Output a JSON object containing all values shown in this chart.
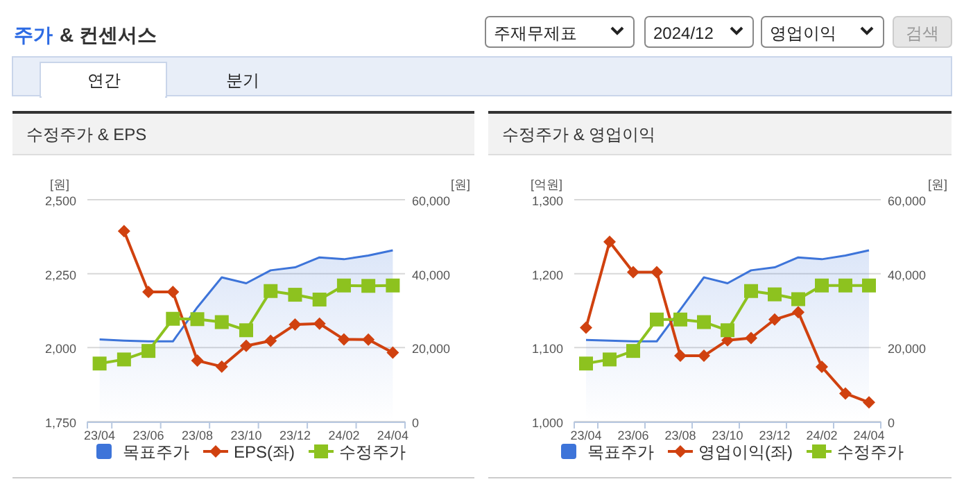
{
  "chart_data": [
    {
      "type": "line",
      "title": "수정주가 & EPS",
      "ylabel": "[원]",
      "y2label": "[원]",
      "annotations": [
        "주가",
        "& 컨센서스",
        "주재무제표",
        "2024/12",
        "영업이익",
        "검색",
        "연간",
        "분기"
      ],
      "categories": [
        "23/04",
        null,
        "23/06",
        null,
        "23/08",
        null,
        "23/10",
        null,
        "23/12",
        null,
        "24/02",
        null,
        "24/04"
      ],
      "series": [
        {
          "name": "목표주가",
          "type": "area",
          "axis": "y2",
          "color": "#3d74d9",
          "values": [
            22200,
            21900,
            21700,
            21700,
            30900,
            39000,
            37400,
            40900,
            41700,
            44400,
            43900,
            44900,
            46300
          ]
        },
        {
          "name": "EPS(좌)",
          "type": "line",
          "marker": "diamond",
          "color": "#d0410f",
          "values": [
            null,
            2394,
            2188,
            2188,
            1956,
            1936,
            2006,
            2023,
            2078,
            2081,
            2028,
            2027,
            1983
          ]
        },
        {
          "name": "수정주가",
          "type": "line",
          "marker": "square",
          "axis": "y2",
          "color": "#8dc21f",
          "values": [
            15700,
            16800,
            19100,
            27800,
            27700,
            26900,
            24700,
            35300,
            34300,
            33000,
            36800,
            36700,
            36800
          ]
        }
      ],
      "ylim": [
        1750,
        2500
      ],
      "yticks": [
        {
          "value": 1750,
          "label": "1,750"
        },
        {
          "value": 2000,
          "label": "2,000"
        },
        {
          "value": 2250,
          "label": "2,250"
        },
        {
          "value": 2500,
          "label": "2,500"
        }
      ],
      "y2lim": [
        0,
        60000
      ],
      "y2ticks": [
        0,
        {
          "value": 20000,
          "label": "20,000"
        },
        {
          "value": 40000,
          "label": "40,000"
        },
        {
          "value": 60000,
          "label": "60,000"
        }
      ],
      "grid": "y",
      "legend": "bottom"
    },
    {
      "type": "line",
      "title": "수정주가 & 영업이익",
      "ylabel": "[억원]",
      "y2label": "[원]",
      "categories": [
        "23/04",
        null,
        "23/06",
        null,
        "23/08",
        null,
        "23/10",
        null,
        "23/12",
        null,
        "24/02",
        null,
        "24/04"
      ],
      "series": [
        {
          "name": "목표주가",
          "type": "area",
          "axis": "y2",
          "color": "#3d74d9",
          "values": [
            22100,
            21900,
            21700,
            21700,
            30300,
            39000,
            37400,
            40900,
            41700,
            44400,
            43900,
            44900,
            46300
          ]
        },
        {
          "name": "영업이익(좌)",
          "type": "line",
          "marker": "diamond",
          "color": "#d0410f",
          "values": [
            1127,
            1243,
            1202,
            1202,
            1089,
            1089,
            1110,
            1113,
            1138,
            1148,
            1074,
            1038,
            1026
          ]
        },
        {
          "name": "수정주가",
          "type": "line",
          "marker": "square",
          "axis": "y2",
          "color": "#8dc21f",
          "values": [
            15700,
            16800,
            19100,
            27600,
            27600,
            26900,
            24700,
            35300,
            34400,
            33100,
            36800,
            36800,
            36800
          ]
        }
      ],
      "ylim": [
        1000,
        1300
      ],
      "yticks": [
        {
          "value": 1000,
          "label": "1,000"
        },
        {
          "value": 1100,
          "label": "1,100"
        },
        {
          "value": 1200,
          "label": "1,200"
        },
        {
          "value": 1300,
          "label": "1,300"
        }
      ],
      "y2lim": [
        0,
        60000
      ],
      "y2ticks": [
        0,
        {
          "value": 20000,
          "label": "20,000"
        },
        {
          "value": 40000,
          "label": "40,000"
        },
        {
          "value": 60000,
          "label": "60,000"
        }
      ],
      "grid": "y",
      "legend": "bottom"
    }
  ]
}
